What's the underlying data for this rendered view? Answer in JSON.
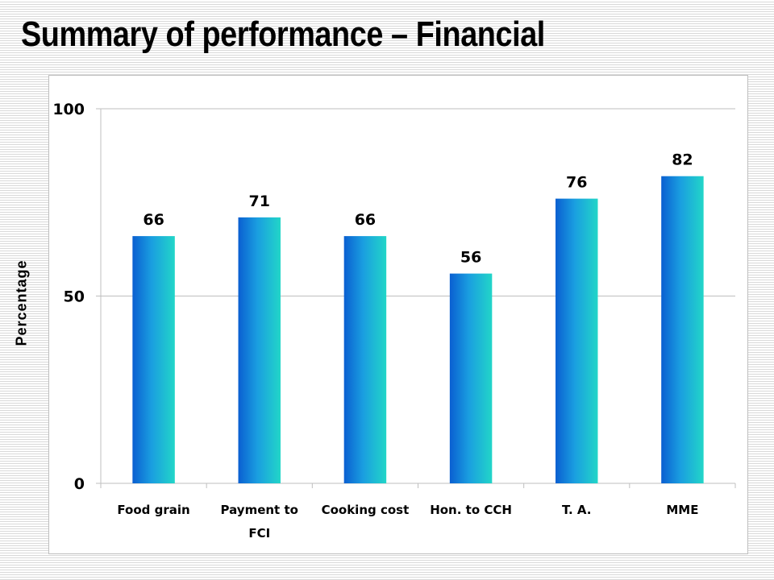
{
  "slide": {
    "title": "Summary of performance – Financial"
  },
  "chart_data": {
    "type": "bar",
    "title": "",
    "xlabel": "",
    "ylabel": "Percentage",
    "categories": [
      [
        "Food grain"
      ],
      [
        "Payment to",
        "FCI"
      ],
      [
        "Cooking cost"
      ],
      [
        "Hon. to CCH"
      ],
      [
        "T. A."
      ],
      [
        "MME"
      ]
    ],
    "values": [
      66,
      71,
      66,
      56,
      76,
      82
    ],
    "ylim": [
      0,
      100
    ],
    "yticks": [
      0,
      50,
      100
    ],
    "data_labels": true,
    "grid": true,
    "legend": "none",
    "colors": {
      "bar_left": "#0a5fd1",
      "bar_mid": "#1a9ee0",
      "bar_right": "#22d6c8",
      "grid": "#bfbfbf"
    }
  }
}
